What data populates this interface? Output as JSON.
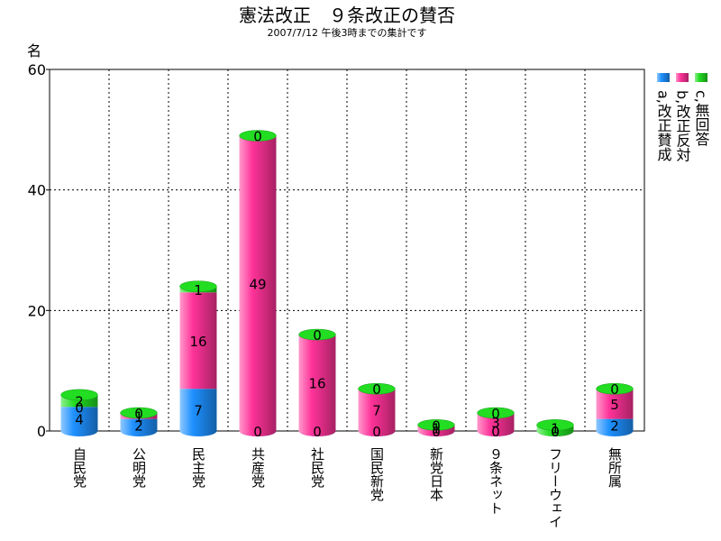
{
  "chart_data": {
    "type": "bar",
    "title": "憲法改正　９条改正の賛否",
    "subtitle": "2007/7/12 午後3時までの集計です",
    "y_label": "名",
    "categories": [
      "自民党",
      "公明党",
      "民主党",
      "共産党",
      "社民党",
      "国民新党",
      "新党日本",
      "９条ネット",
      "フリーウェイ",
      "無所属"
    ],
    "series": [
      {
        "name": "a,改正賛成",
        "color": "#1e90ff",
        "values": [
          4,
          2,
          7,
          0,
          0,
          0,
          0,
          0,
          0,
          2
        ]
      },
      {
        "name": "b,改正反対",
        "color": "#ff3399",
        "values": [
          0,
          1,
          16,
          49,
          16,
          7,
          1,
          3,
          0,
          5
        ]
      },
      {
        "name": "c,無回答",
        "color": "#22dd22",
        "values": [
          2,
          0,
          1,
          0,
          0,
          0,
          0,
          0,
          1,
          0
        ]
      }
    ],
    "stacked": true,
    "ylim": [
      0,
      60
    ],
    "yticks": [
      0,
      20,
      40,
      60
    ],
    "grid": true,
    "legend": "right"
  }
}
